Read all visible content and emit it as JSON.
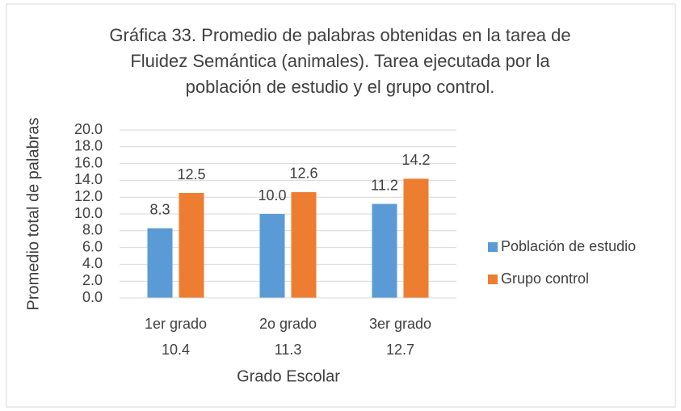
{
  "chart_data": {
    "type": "bar",
    "title": [
      "Gráfica 33. Promedio de palabras obtenidas en la tarea de",
      "Fluidez Semántica (animales). Tarea ejecutada por la",
      "población de estudio y el grupo control."
    ],
    "x_label": "Grado Escolar",
    "y_label": "Promedio total de palabras",
    "categories": [
      [
        "1er grado",
        "10.4"
      ],
      [
        "2o grado",
        "11.3"
      ],
      [
        "3er grado",
        "12.7"
      ]
    ],
    "series": [
      {
        "name": "Población de estudio",
        "color": "#5b9bd5",
        "values": [
          8.3,
          10.0,
          11.2
        ],
        "value_labels": [
          "8.3",
          "10.0",
          "11.2"
        ]
      },
      {
        "name": "Grupo control",
        "color": "#ed7d31",
        "values": [
          12.5,
          12.6,
          14.2
        ],
        "value_labels": [
          "12.5",
          "12.6",
          "14.2"
        ]
      }
    ],
    "ylim": [
      0,
      20
    ],
    "yticks": [
      {
        "value": 0,
        "label": "0.0"
      },
      {
        "value": 2,
        "label": "2.0"
      },
      {
        "value": 4,
        "label": "4.0"
      },
      {
        "value": 6,
        "label": "6.0"
      },
      {
        "value": 8,
        "label": "8.0"
      },
      {
        "value": 10,
        "label": "10.0"
      },
      {
        "value": 12,
        "label": "12.0"
      },
      {
        "value": 14,
        "label": "14.0"
      },
      {
        "value": 16,
        "label": "16.0"
      },
      {
        "value": 18,
        "label": "18.0"
      },
      {
        "value": 20,
        "label": "20.0"
      }
    ],
    "grid": true,
    "legend": "right"
  }
}
